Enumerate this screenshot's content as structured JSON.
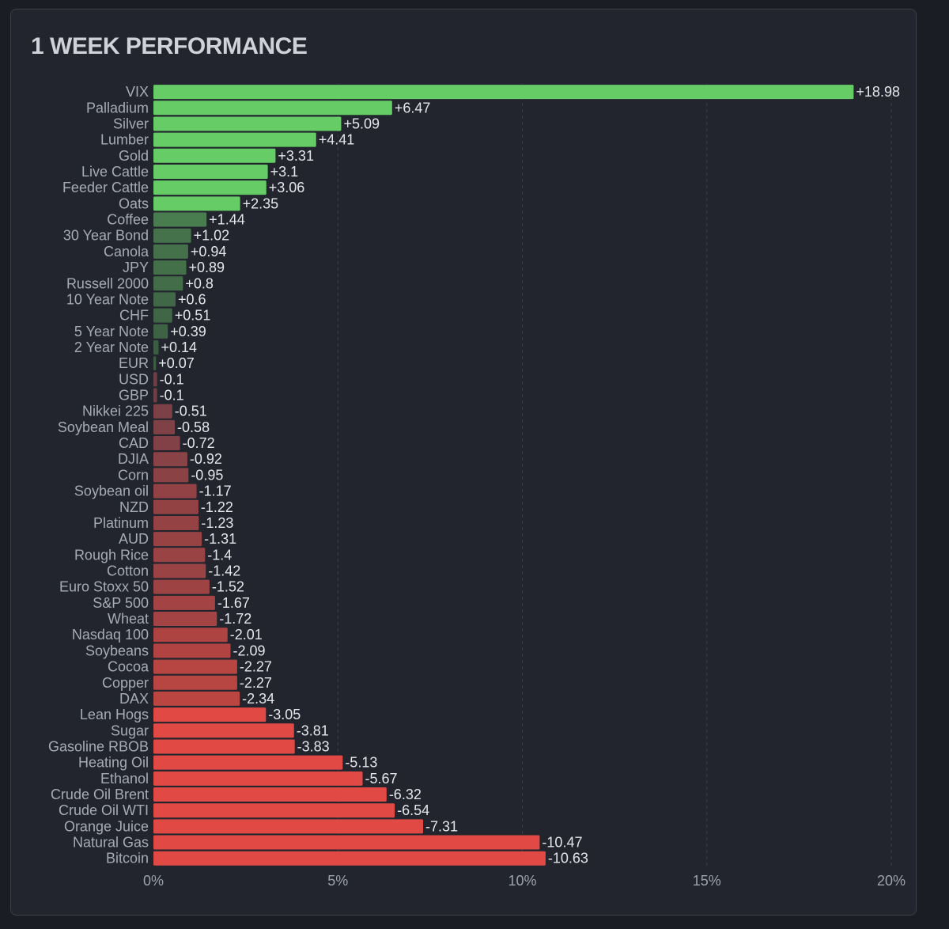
{
  "title": "1 WEEK PERFORMANCE",
  "colors": {
    "positive": "#66cc66",
    "negative": "#e14a44",
    "positive_dim": "#3a5a40",
    "negative_dim": "#6a4048",
    "grid": "#3a3e48",
    "background": "#22252e"
  },
  "chart_data": {
    "type": "bar",
    "orientation": "horizontal",
    "title": "1 WEEK PERFORMANCE",
    "xlabel": "",
    "ylabel": "",
    "xlim": [
      0,
      20
    ],
    "x_ticks": [
      0,
      5,
      10,
      15,
      20
    ],
    "x_tick_labels": [
      "0%",
      "5%",
      "10%",
      "15%",
      "20%"
    ],
    "bar_length": "absolute value",
    "grid": "vertical dashed",
    "categories": [
      "VIX",
      "Palladium",
      "Silver",
      "Lumber",
      "Gold",
      "Live Cattle",
      "Feeder Cattle",
      "Oats",
      "Coffee",
      "30 Year Bond",
      "Canola",
      "JPY",
      "Russell 2000",
      "10 Year Note",
      "CHF",
      "5 Year Note",
      "2 Year Note",
      "EUR",
      "USD",
      "GBP",
      "Nikkei 225",
      "Soybean Meal",
      "CAD",
      "DJIA",
      "Corn",
      "Soybean oil",
      "NZD",
      "Platinum",
      "AUD",
      "Rough Rice",
      "Cotton",
      "Euro Stoxx 50",
      "S&P 500",
      "Wheat",
      "Nasdaq 100",
      "Soybeans",
      "Cocoa",
      "Copper",
      "DAX",
      "Lean Hogs",
      "Sugar",
      "Gasoline RBOB",
      "Heating Oil",
      "Ethanol",
      "Crude Oil Brent",
      "Crude Oil WTI",
      "Orange Juice",
      "Natural Gas",
      "Bitcoin"
    ],
    "values": [
      18.98,
      6.47,
      5.09,
      4.41,
      3.31,
      3.1,
      3.06,
      2.35,
      1.44,
      1.02,
      0.94,
      0.89,
      0.8,
      0.6,
      0.51,
      0.39,
      0.14,
      0.07,
      -0.1,
      -0.1,
      -0.51,
      -0.58,
      -0.72,
      -0.92,
      -0.95,
      -1.17,
      -1.22,
      -1.23,
      -1.31,
      -1.4,
      -1.42,
      -1.52,
      -1.67,
      -1.72,
      -2.01,
      -2.09,
      -2.27,
      -2.27,
      -2.34,
      -3.05,
      -3.81,
      -3.83,
      -5.13,
      -5.67,
      -6.32,
      -6.54,
      -7.31,
      -10.47,
      -10.63
    ],
    "value_labels": [
      "+18.98",
      "+6.47",
      "+5.09",
      "+4.41",
      "+3.31",
      "+3.1",
      "+3.06",
      "+2.35",
      "+1.44",
      "+1.02",
      "+0.94",
      "+0.89",
      "+0.8",
      "+0.6",
      "+0.51",
      "+0.39",
      "+0.14",
      "+0.07",
      "-0.1",
      "-0.1",
      "-0.51",
      "-0.58",
      "-0.72",
      "-0.92",
      "-0.95",
      "-1.17",
      "-1.22",
      "-1.23",
      "-1.31",
      "-1.4",
      "-1.42",
      "-1.52",
      "-1.67",
      "-1.72",
      "-2.01",
      "-2.09",
      "-2.27",
      "-2.27",
      "-2.34",
      "-3.05",
      "-3.81",
      "-3.83",
      "-5.13",
      "-5.67",
      "-6.32",
      "-6.54",
      "-7.31",
      "-10.47",
      "-10.63"
    ]
  }
}
